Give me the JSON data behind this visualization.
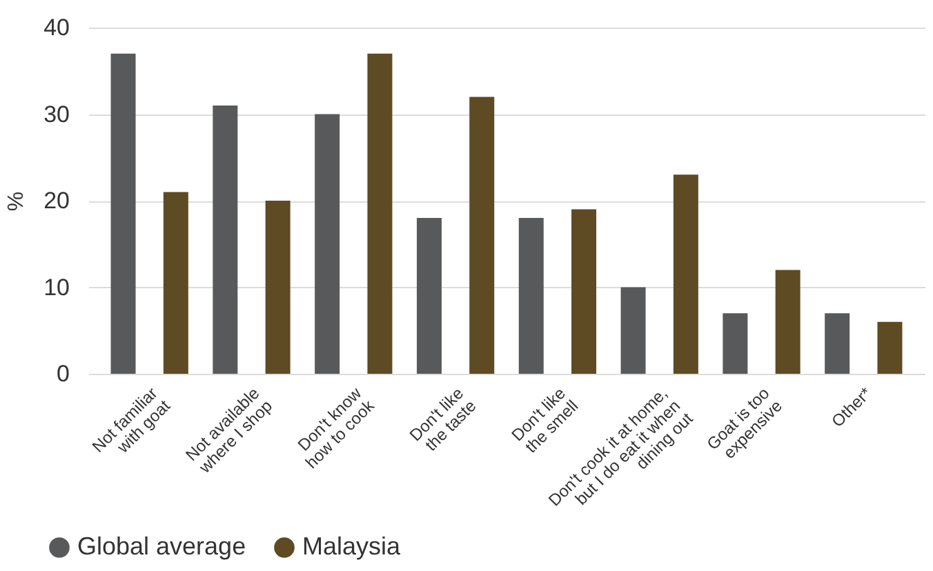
{
  "chart_data": {
    "type": "bar",
    "ylabel": "%",
    "categories": [
      "Not familiar\nwith goat",
      "Not available\nwhere I shop",
      "Don't know\nhow to cook",
      "Don't like\nthe taste",
      "Don't like\nthe smell",
      "Don't cook it at home,\nbut I do eat it when\ndining out",
      "Goat is too\nexpensive",
      "Other*"
    ],
    "series": [
      {
        "name": "Global average",
        "color": "#58595b",
        "values": [
          37,
          31,
          30,
          18,
          18,
          10,
          7,
          7
        ]
      },
      {
        "name": "Malaysia",
        "color": "#5e4a23",
        "values": [
          21,
          20,
          37,
          32,
          19,
          23,
          12,
          6
        ]
      }
    ],
    "ylim": [
      0,
      40
    ],
    "yticks": [
      0,
      10,
      20,
      30,
      40
    ],
    "grid": "y",
    "legend": "bottom left"
  }
}
